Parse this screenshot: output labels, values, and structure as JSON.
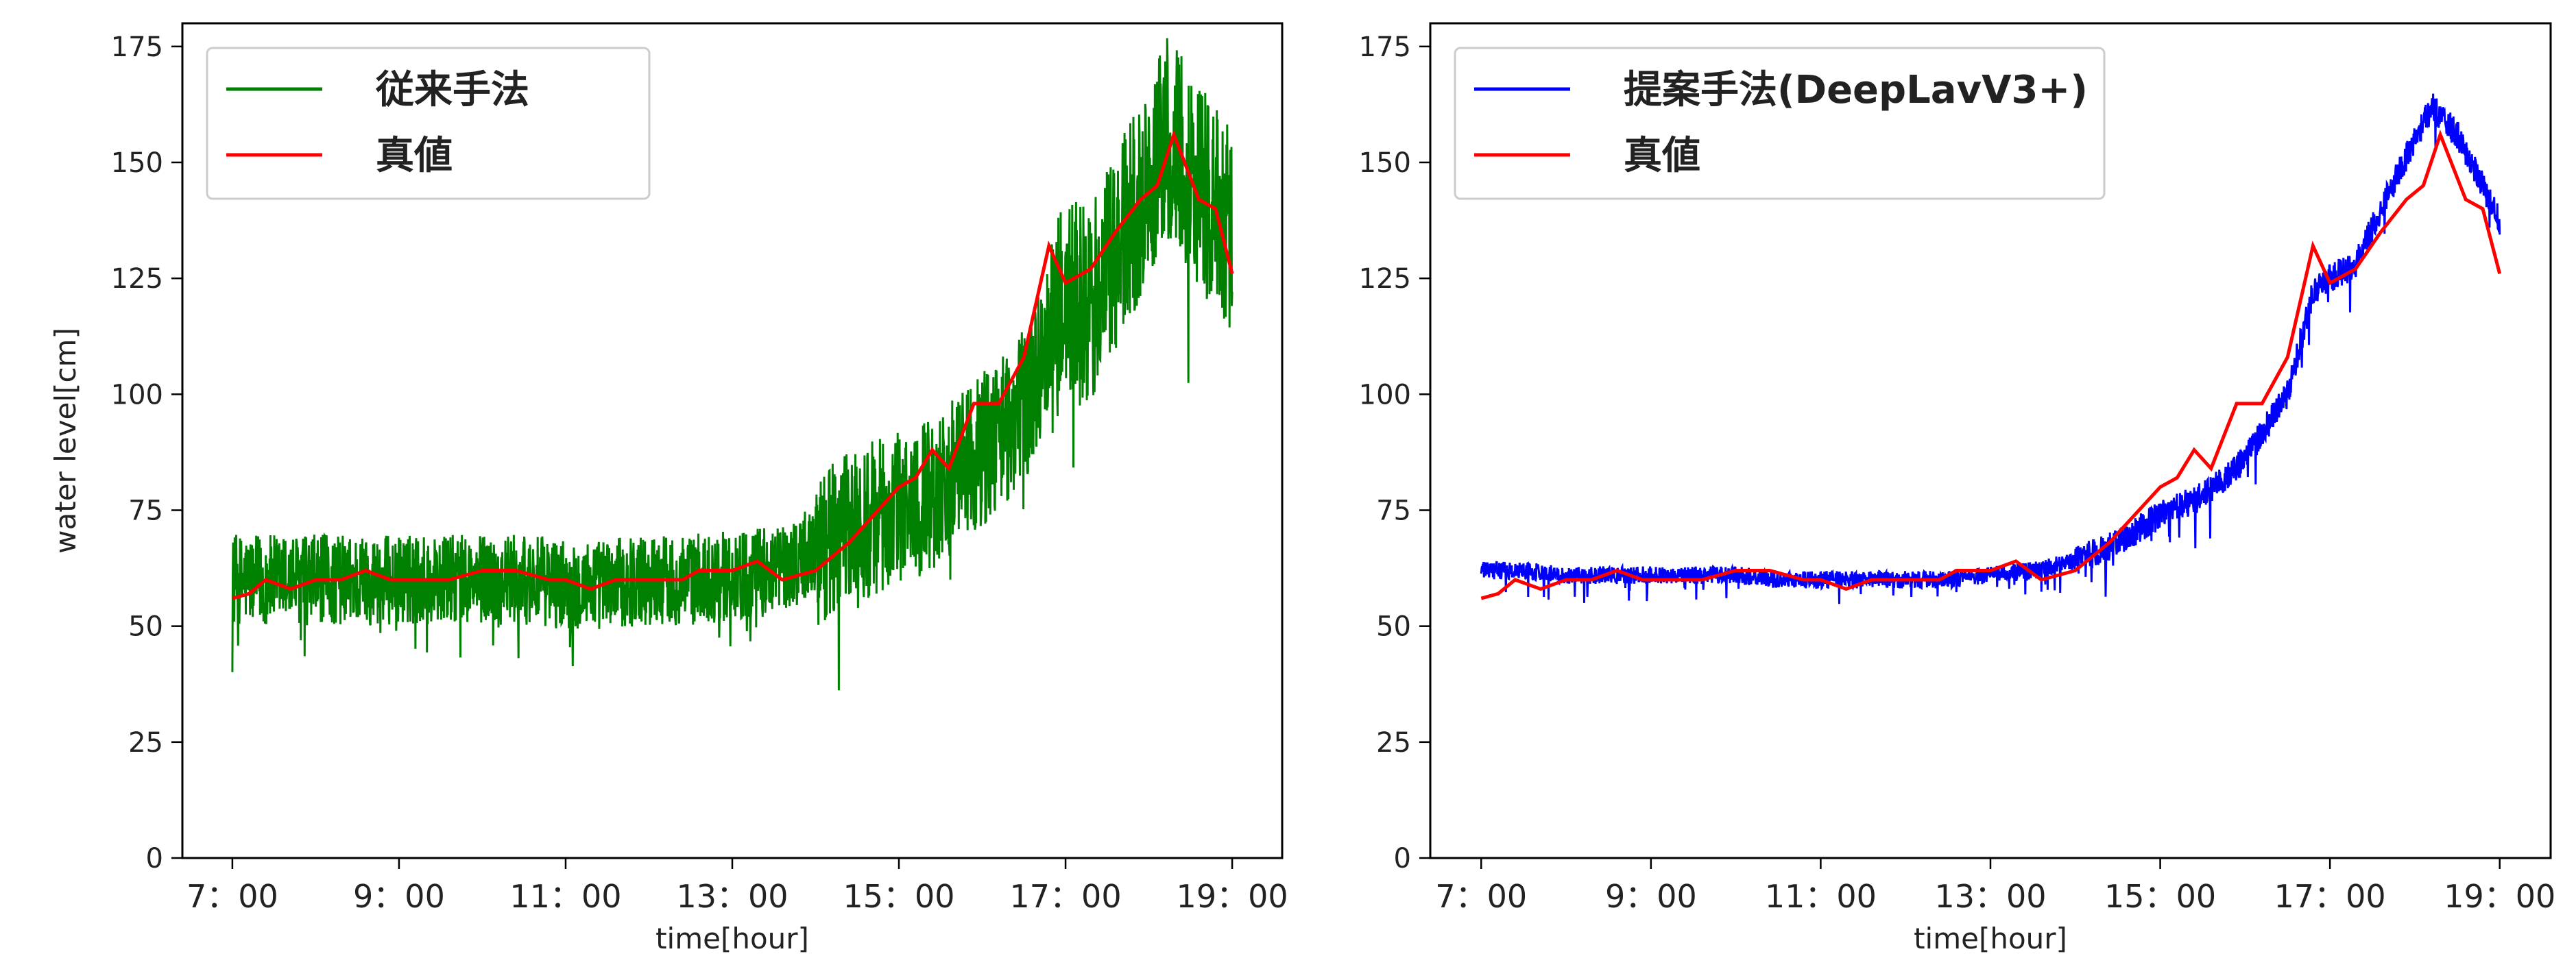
{
  "chart_data": [
    {
      "type": "line",
      "xlabel": "time[hour]",
      "ylabel": "water level[cm]",
      "ylim": [
        0,
        180
      ],
      "xlim": [
        6.4,
        19.6
      ],
      "yticks": [
        0,
        25,
        50,
        75,
        100,
        125,
        150,
        175
      ],
      "xticks": [
        7,
        9,
        11,
        13,
        15,
        17,
        19
      ],
      "xtick_labels": [
        "7：00",
        "9：00",
        "11：00",
        "13：00",
        "15：00",
        "17：00",
        "19：00"
      ],
      "legend": "top-left",
      "grid": false,
      "series": [
        {
          "name": "従来手法",
          "color": "#008000",
          "noisy": true,
          "x": [
            7.0,
            7.5,
            8.0,
            8.5,
            9.0,
            9.5,
            10.0,
            10.5,
            11.0,
            11.5,
            12.0,
            12.5,
            13.0,
            13.5,
            14.0,
            14.5,
            15.0,
            15.5,
            16.0,
            16.5,
            16.8,
            17.0,
            17.3,
            17.6,
            18.0,
            18.2,
            18.5,
            18.8,
            19.0
          ],
          "y": [
            60,
            60,
            60,
            60,
            60,
            60,
            60,
            60,
            59,
            59,
            60,
            60,
            61,
            62,
            66,
            72,
            75,
            80,
            88,
            97,
            112,
            120,
            118,
            130,
            145,
            155,
            148,
            140,
            135
          ]
        },
        {
          "name": "真値",
          "color": "#ff0000",
          "x": [
            7.0,
            7.2,
            7.4,
            7.7,
            8.0,
            8.3,
            8.6,
            8.9,
            9.2,
            9.6,
            10.0,
            10.4,
            10.8,
            11.0,
            11.3,
            11.6,
            12.0,
            12.4,
            12.6,
            13.0,
            13.3,
            13.6,
            14.0,
            14.4,
            14.7,
            15.0,
            15.2,
            15.4,
            15.6,
            15.9,
            16.2,
            16.5,
            16.8,
            17.0,
            17.3,
            17.6,
            17.9,
            18.1,
            18.3,
            18.6,
            18.8,
            19.0
          ],
          "y": [
            56,
            57,
            60,
            58,
            60,
            60,
            62,
            60,
            60,
            60,
            62,
            62,
            60,
            60,
            58,
            60,
            60,
            60,
            62,
            62,
            64,
            60,
            62,
            68,
            74,
            80,
            82,
            88,
            84,
            98,
            98,
            108,
            132,
            124,
            127,
            135,
            142,
            145,
            156,
            142,
            140,
            126
          ]
        }
      ]
    },
    {
      "type": "line",
      "xlabel": "time[hour]",
      "ylabel": "",
      "ylim": [
        0,
        180
      ],
      "xlim": [
        6.4,
        19.6
      ],
      "yticks": [
        0,
        25,
        50,
        75,
        100,
        125,
        150,
        175
      ],
      "xticks": [
        7,
        9,
        11,
        13,
        15,
        17,
        19
      ],
      "xtick_labels": [
        "7：00",
        "9：00",
        "11：00",
        "13：00",
        "15：00",
        "17：00",
        "19：00"
      ],
      "legend": "top-left",
      "grid": false,
      "series": [
        {
          "name": "提案手法(DeepLavV3+)",
          "color": "#0000ff",
          "noisy": true,
          "x": [
            7.0,
            7.5,
            8.0,
            8.5,
            9.0,
            9.5,
            10.0,
            10.5,
            11.0,
            11.5,
            12.0,
            12.5,
            13.0,
            13.5,
            14.0,
            14.5,
            15.0,
            15.5,
            16.0,
            16.5,
            16.8,
            17.0,
            17.3,
            17.6,
            18.0,
            18.2,
            18.5,
            18.8,
            19.0
          ],
          "y": [
            62,
            62,
            61,
            61,
            61,
            61,
            61,
            60,
            60,
            60,
            60,
            60,
            61,
            62,
            64,
            68,
            74,
            78,
            86,
            100,
            122,
            125,
            128,
            140,
            155,
            162,
            156,
            145,
            137
          ]
        },
        {
          "name": "真値",
          "color": "#ff0000",
          "x": [
            7.0,
            7.2,
            7.4,
            7.7,
            8.0,
            8.3,
            8.6,
            8.9,
            9.2,
            9.6,
            10.0,
            10.4,
            10.8,
            11.0,
            11.3,
            11.6,
            12.0,
            12.4,
            12.6,
            13.0,
            13.3,
            13.6,
            14.0,
            14.4,
            14.7,
            15.0,
            15.2,
            15.4,
            15.6,
            15.9,
            16.2,
            16.5,
            16.8,
            17.0,
            17.3,
            17.6,
            17.9,
            18.1,
            18.3,
            18.6,
            18.8,
            19.0
          ],
          "y": [
            56,
            57,
            60,
            58,
            60,
            60,
            62,
            60,
            60,
            60,
            62,
            62,
            60,
            60,
            58,
            60,
            60,
            60,
            62,
            62,
            64,
            60,
            62,
            68,
            74,
            80,
            82,
            88,
            84,
            98,
            98,
            108,
            132,
            124,
            127,
            135,
            142,
            145,
            156,
            142,
            140,
            126
          ]
        }
      ]
    }
  ]
}
